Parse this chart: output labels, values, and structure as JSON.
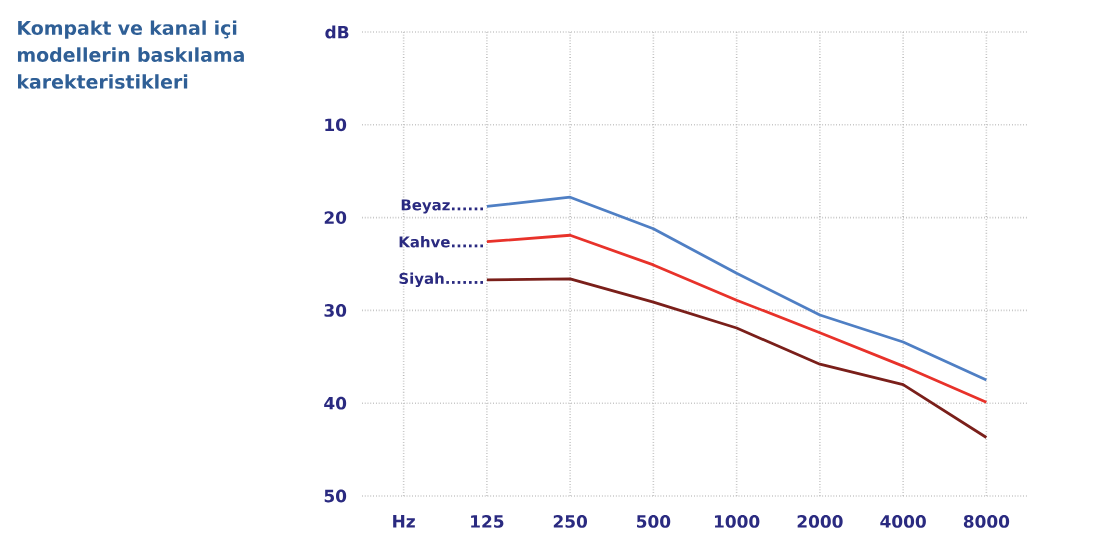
{
  "chart_data": {
    "type": "line",
    "title": "Kompakt ve kanal içi modellerin baskılama karekteristikleri",
    "xlabel": "Hz",
    "ylabel": "dB",
    "categories": [
      "125",
      "250",
      "500",
      "1000",
      "2000",
      "4000",
      "8000"
    ],
    "ylim": [
      50,
      0
    ],
    "yticks": [
      {
        "value": 0,
        "label": null
      },
      10,
      20,
      30,
      40,
      50
    ],
    "grid": true,
    "marker": "none",
    "line_style": "solid",
    "series": [
      {
        "name": "Beyaz......",
        "color": "#4f7fc4",
        "values": [
          18.8,
          17.8,
          21.2,
          26.0,
          30.5,
          33.4,
          37.5
        ]
      },
      {
        "name": "Kahve......",
        "color": "#e8322a",
        "values": [
          22.6,
          21.9,
          25.1,
          28.9,
          32.4,
          36.0,
          39.9
        ]
      },
      {
        "name": "Siyah.......",
        "color": "#7a1f1a",
        "values": [
          26.7,
          26.6,
          29.1,
          31.9,
          35.8,
          38.0,
          43.7
        ]
      }
    ]
  }
}
